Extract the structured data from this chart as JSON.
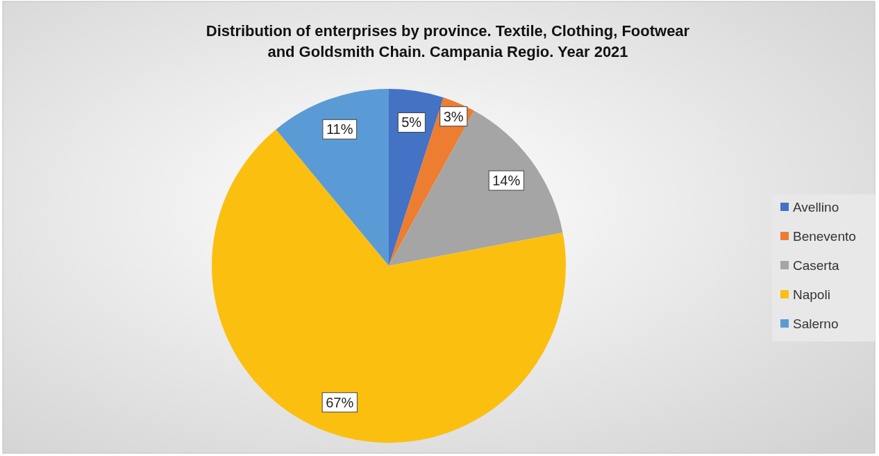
{
  "chart_data": {
    "type": "pie",
    "title": "Distribution of enterprises by province. Textile, Clothing, Footwear and Goldsmith Chain. Campania Regio. Year 2021",
    "categories": [
      "Avellino",
      "Benevento",
      "Caserta",
      "Napoli",
      "Salerno"
    ],
    "values": [
      5,
      3,
      14,
      67,
      11
    ],
    "colors": [
      "#4472c4",
      "#ed7d31",
      "#a5a5a5",
      "#fbbf10",
      "#5b9bd5"
    ],
    "value_labels": [
      "5%",
      "3%",
      "14%",
      "67%",
      "11%"
    ],
    "legend": "right"
  }
}
